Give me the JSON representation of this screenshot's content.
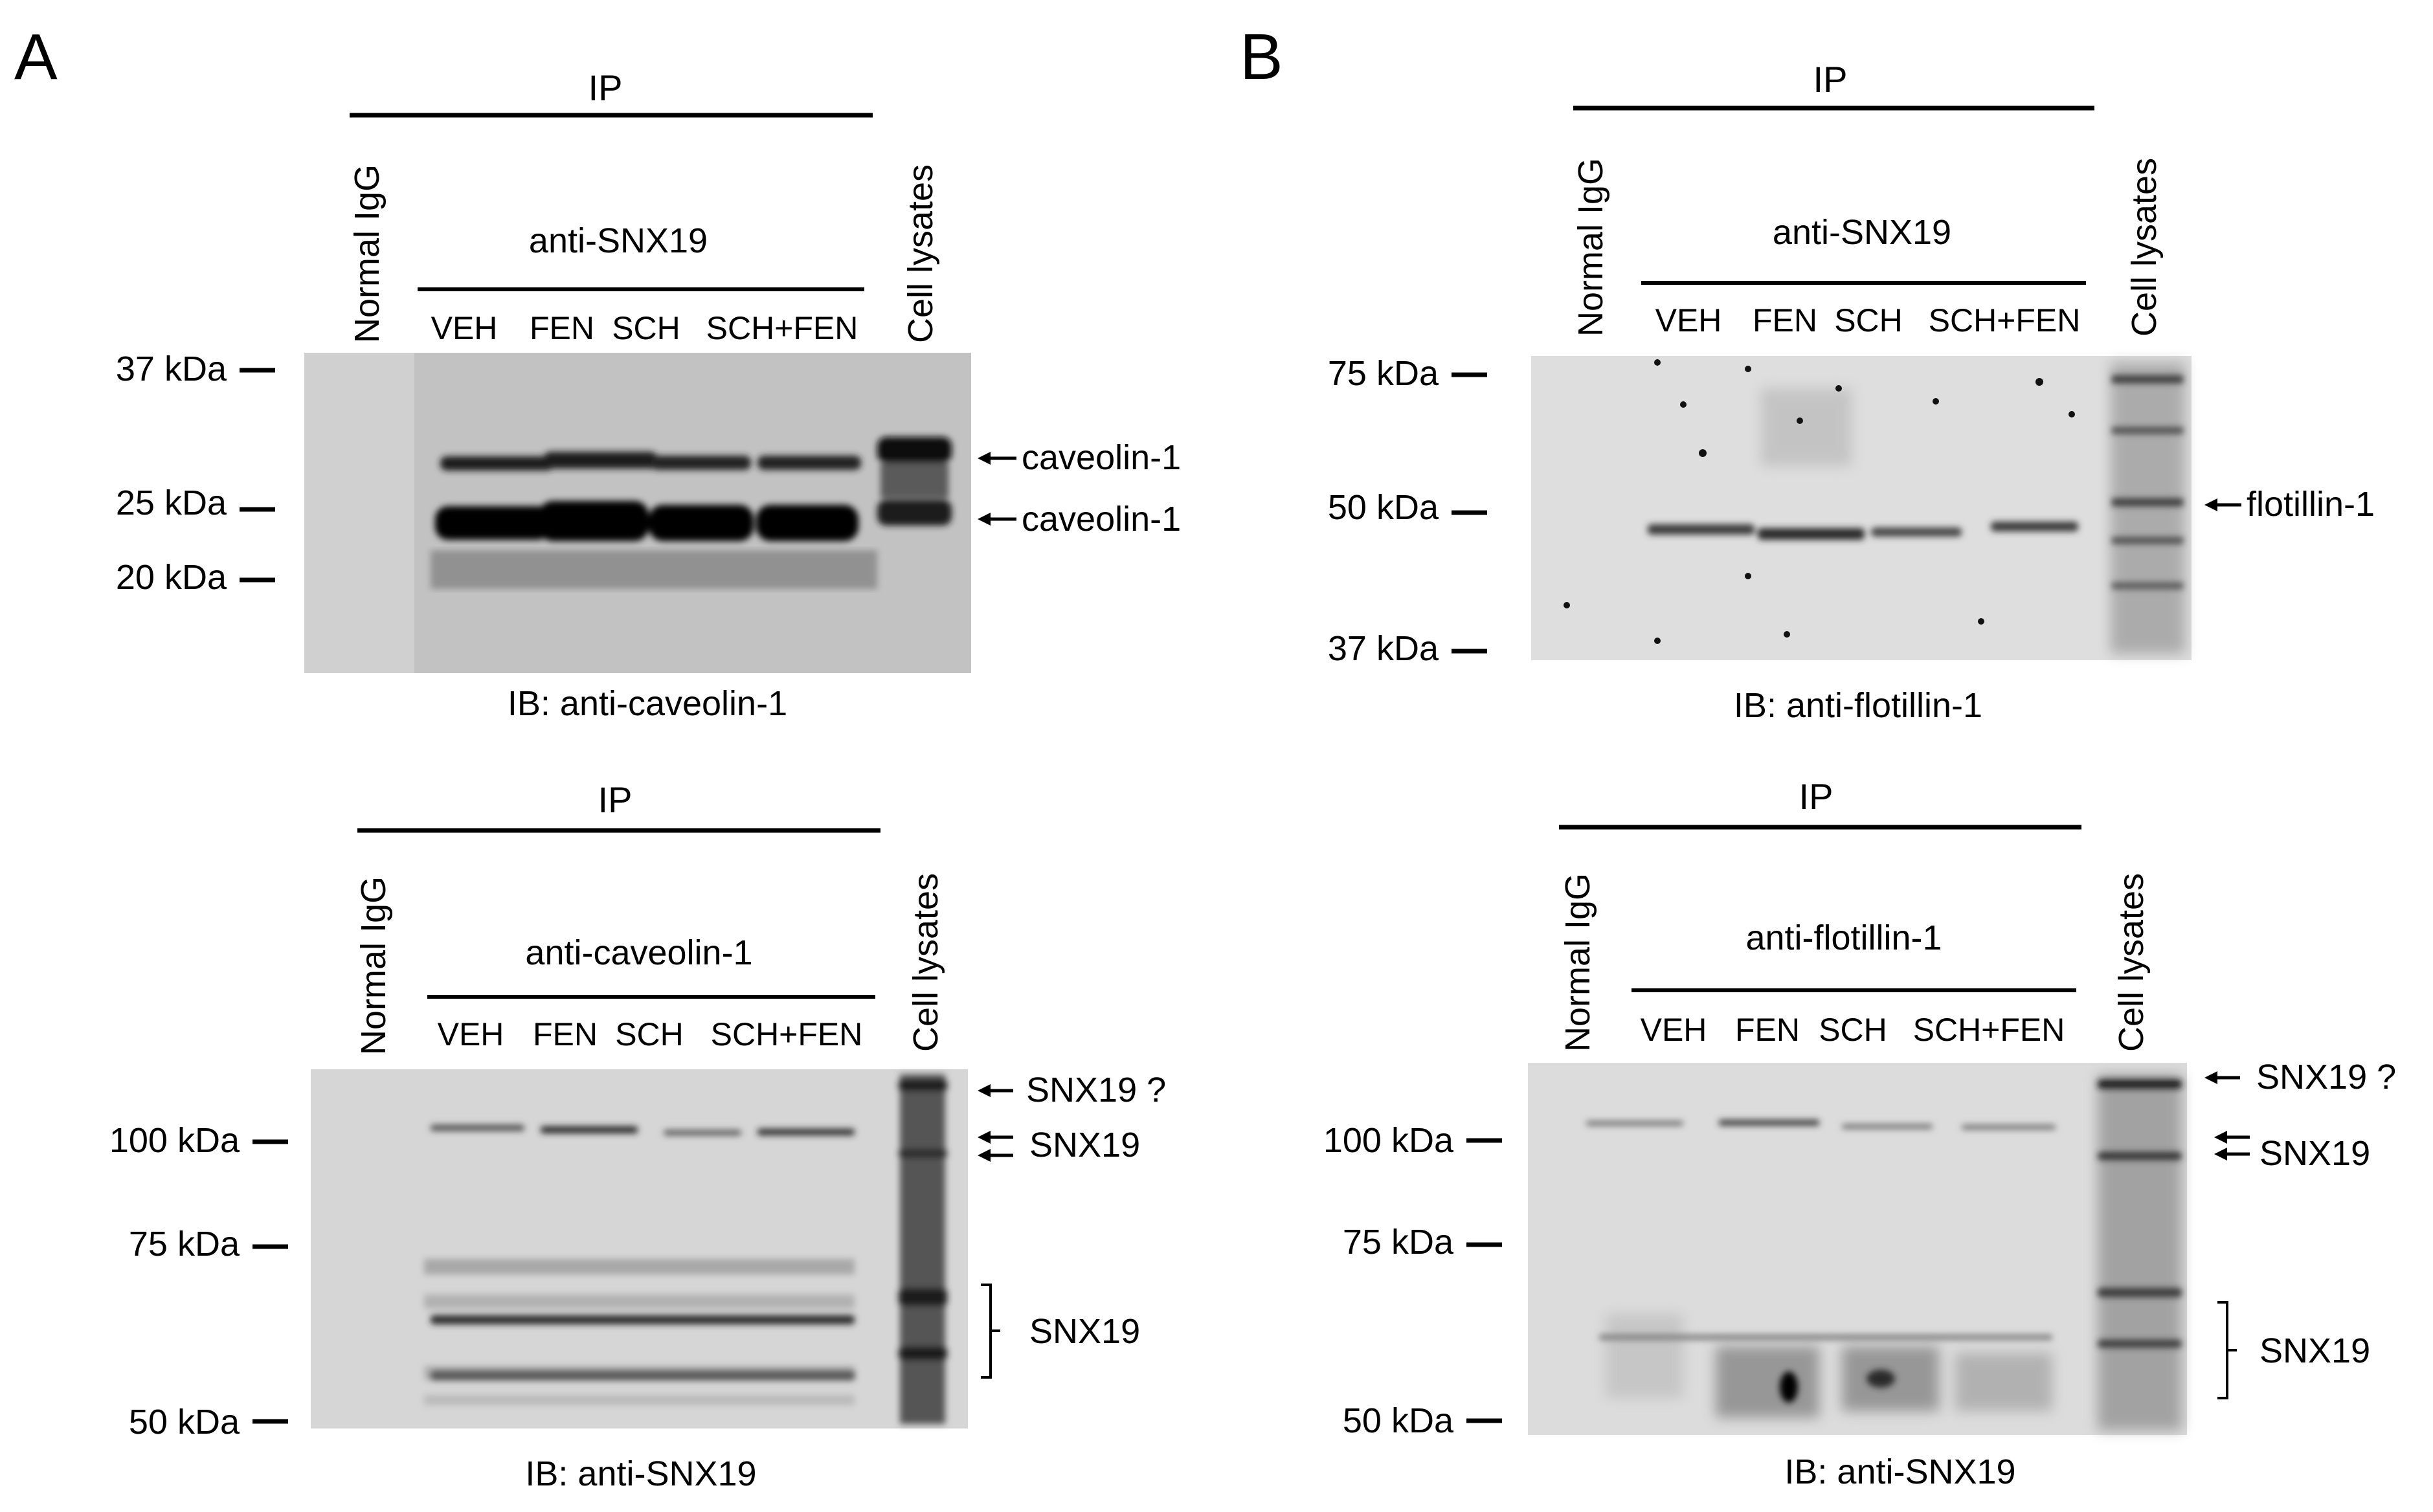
{
  "panels": [
    {
      "letter": "A",
      "blots": [
        {
          "ip": "IP",
          "normal": "Normal IgG",
          "anti": "anti-SNX19",
          "lanes": [
            "VEH",
            "FEN",
            "SCH",
            "SCH+FEN"
          ],
          "lysate": "Cell lysates",
          "markers": [
            "37 kDa",
            "25 kDa",
            "20 kDa"
          ],
          "bands": [
            "caveolin-1",
            "caveolin-1"
          ],
          "ib": "IB: anti-caveolin-1"
        },
        {
          "ip": "IP",
          "normal": "Normal IgG",
          "anti": "anti-caveolin-1",
          "lanes": [
            "VEH",
            "FEN",
            "SCH",
            "SCH+FEN"
          ],
          "lysate": "Cell lysates",
          "markers": [
            "100 kDa",
            "75 kDa",
            "50 kDa"
          ],
          "bands": [
            "SNX19 ?",
            "SNX19",
            "SNX19"
          ],
          "ib": "IB: anti-SNX19"
        }
      ]
    },
    {
      "letter": "B",
      "blots": [
        {
          "ip": "IP",
          "normal": "Normal IgG",
          "anti": "anti-SNX19",
          "lanes": [
            "VEH",
            "FEN",
            "SCH",
            "SCH+FEN"
          ],
          "lysate": "Cell lysates",
          "markers": [
            "75 kDa",
            "50 kDa",
            "37 kDa"
          ],
          "bands": [
            "flotillin-1"
          ],
          "ib": "IB: anti-flotillin-1"
        },
        {
          "ip": "IP",
          "normal": "Normal IgG",
          "anti": "anti-flotillin-1",
          "lanes": [
            "VEH",
            "FEN",
            "SCH",
            "SCH+FEN"
          ],
          "lysate": "Cell lysates",
          "markers": [
            "100 kDa",
            "75 kDa",
            "50 kDa"
          ],
          "bands": [
            "SNX19 ?",
            "SNX19",
            "SNX19"
          ],
          "ib": "IB: anti-SNX19"
        }
      ]
    }
  ]
}
